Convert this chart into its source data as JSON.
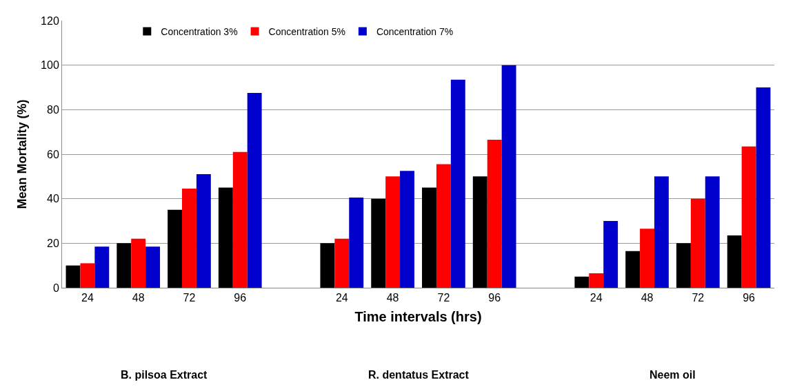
{
  "chart_data": {
    "type": "bar",
    "xlabel": "Time intervals (hrs)",
    "ylabel": "Mean Mortality (%)",
    "categories": [
      "24",
      "48",
      "72",
      "96",
      null,
      "24",
      "48",
      "72",
      "96",
      null,
      "24",
      "48",
      "72",
      "96"
    ],
    "series": [
      {
        "name": "Concentration 3%",
        "color": "#000000",
        "values": [
          10,
          20,
          35,
          45,
          null,
          20,
          40,
          45,
          50,
          null,
          5,
          16.5,
          20,
          23.5
        ]
      },
      {
        "name": "Concentration 5%",
        "color": "#ff0000",
        "values": [
          11,
          22,
          44.5,
          61,
          null,
          22,
          50,
          55.5,
          66.5,
          null,
          6.5,
          26.5,
          40,
          63.5
        ]
      },
      {
        "name": "Concentration 7%",
        "color": "#0000cc",
        "values": [
          18.5,
          18.5,
          51,
          87.5,
          null,
          40.5,
          52.5,
          93.5,
          100,
          null,
          30,
          50,
          50,
          90
        ]
      }
    ],
    "ylim": [
      0,
      120
    ],
    "yticks": [
      0,
      20,
      40,
      60,
      80,
      100,
      120
    ],
    "grid": "y",
    "legend": "top",
    "annotations": [
      "B. pilsoa Extract",
      "R. dentatus Extract",
      "Neem oil"
    ]
  }
}
